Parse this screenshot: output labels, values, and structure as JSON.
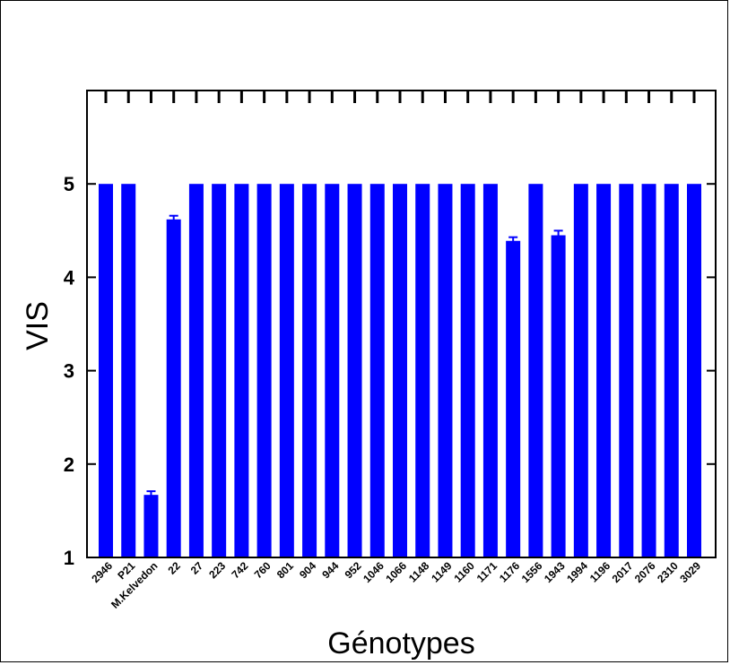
{
  "chart_data": {
    "type": "bar",
    "title": "",
    "xlabel": "Génotypes",
    "ylabel": "VIS",
    "ylim": [
      1,
      6
    ],
    "yticks": [
      1,
      2,
      3,
      4,
      5
    ],
    "grid": false,
    "bar_color": "#0000ff",
    "categories": [
      "2946",
      "P21",
      "M.Kelvedon",
      "22",
      "27",
      "223",
      "742",
      "760",
      "801",
      "904",
      "944",
      "952",
      "1046",
      "1066",
      "1148",
      "1149",
      "1160",
      "1171",
      "1176",
      "1556",
      "1943",
      "1994",
      "1196",
      "2017",
      "2076",
      "2310",
      "3029"
    ],
    "values": [
      5,
      5,
      1.67,
      4.62,
      5,
      5,
      5,
      5,
      5,
      5,
      5,
      5,
      5,
      5,
      5,
      5,
      5,
      5,
      4.39,
      5,
      4.45,
      5,
      5,
      5,
      5,
      5,
      5
    ],
    "errors": [
      0,
      0,
      0.02,
      0.02,
      0,
      0,
      0,
      0,
      0,
      0,
      0,
      0,
      0,
      0,
      0,
      0,
      0,
      0,
      0.02,
      0,
      0.03,
      0,
      0,
      0,
      0,
      0,
      0
    ]
  }
}
